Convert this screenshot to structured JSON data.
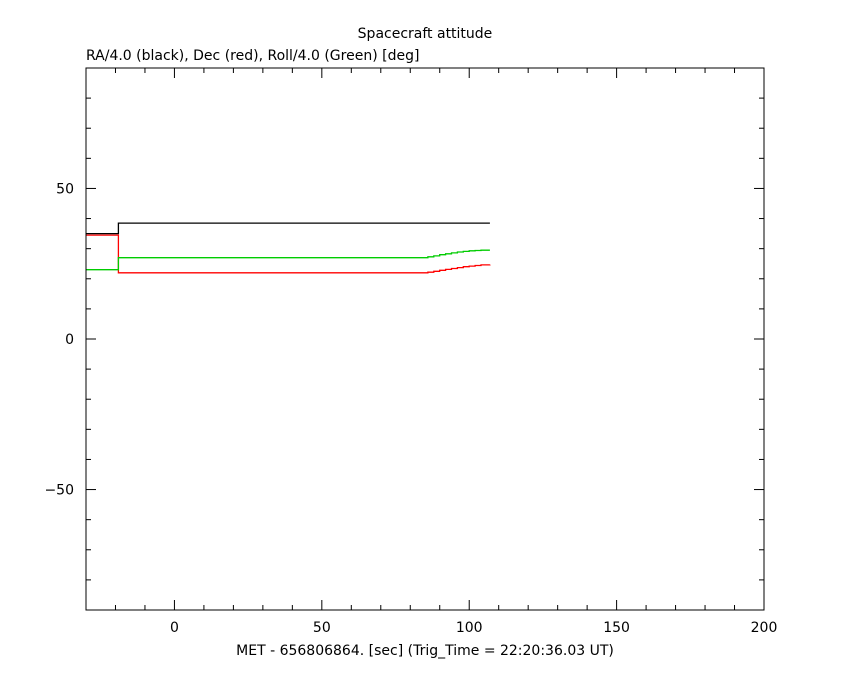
{
  "chart_data": {
    "type": "line",
    "title": "Spacecraft attitude",
    "subtitle": "RA/4.0 (black), Dec (red), Roll/4.0 (Green) [deg]",
    "xlabel": "MET - 656806864. [sec] (Trig_Time = 22:20:36.03 UT)",
    "ylabel": "",
    "xlim": [
      -30,
      200
    ],
    "ylim": [
      -90,
      90
    ],
    "x_ticks": [
      0,
      50,
      100,
      150,
      200
    ],
    "y_ticks": [
      -50,
      0,
      50
    ],
    "x_minor_step": 10,
    "y_minor_step": 10,
    "grid": false,
    "step_style": true,
    "series": [
      {
        "color": "#000000",
        "points": [
          [
            -30,
            35
          ],
          [
            -19,
            35
          ],
          [
            -19,
            38.5
          ],
          [
            107,
            38.5
          ]
        ]
      },
      {
        "color": "#ff0000",
        "points": [
          [
            -30,
            34.5
          ],
          [
            -19,
            34.5
          ],
          [
            -19,
            22
          ],
          [
            84,
            22
          ],
          [
            86,
            22.2
          ],
          [
            88,
            22.5
          ],
          [
            90,
            22.8
          ],
          [
            92,
            23.1
          ],
          [
            94,
            23.4
          ],
          [
            96,
            23.7
          ],
          [
            98,
            24.0
          ],
          [
            100,
            24.2
          ],
          [
            102,
            24.4
          ],
          [
            104,
            24.6
          ],
          [
            107,
            24.7
          ]
        ]
      },
      {
        "color": "#00cc00",
        "points": [
          [
            -30,
            23
          ],
          [
            -19,
            23
          ],
          [
            -19,
            27
          ],
          [
            84,
            27
          ],
          [
            86,
            27.3
          ],
          [
            88,
            27.6
          ],
          [
            90,
            28.0
          ],
          [
            92,
            28.3
          ],
          [
            94,
            28.6
          ],
          [
            96,
            28.9
          ],
          [
            98,
            29.1
          ],
          [
            100,
            29.3
          ],
          [
            102,
            29.4
          ],
          [
            104,
            29.5
          ],
          [
            107,
            29.5
          ]
        ]
      }
    ]
  }
}
